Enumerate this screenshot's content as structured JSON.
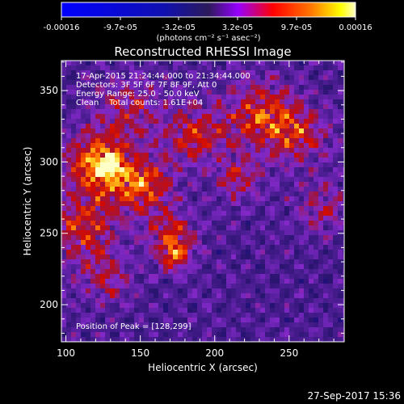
{
  "colorbar": {
    "tick_labels": [
      "-0.00016",
      "-9.7e-05",
      "-3.2e-05",
      "3.2e-05",
      "9.7e-05",
      "0.00016"
    ],
    "unit_label": "(photons cm⁻² s⁻¹ asec⁻²)",
    "range": [
      -0.00016,
      0.00016
    ]
  },
  "chart_data": {
    "type": "heatmap",
    "title": "Reconstructed RHESSI Image",
    "xlabel": "Heliocentric X (arcsec)",
    "ylabel": "Heliocentric Y (arcsec)",
    "xlim": [
      97,
      287
    ],
    "ylim": [
      174,
      371
    ],
    "x_ticks": [
      100,
      150,
      200,
      250
    ],
    "y_ticks": [
      200,
      250,
      300,
      350
    ],
    "annotations": [
      "17-Apr-2015 21:24:44.000 to 21:34:44.000",
      "Detectors: 3F 5F 6F 7F 8F 9F, Att 0",
      "Energy Range: 25.0 - 50.0 keV",
      "Clean    Total counts: 1.61E+04"
    ],
    "peak_label": "Position of Peak = [128,299]",
    "peak": [
      128,
      299
    ],
    "colors": {
      "low": "#0000ff",
      "mid": "#9600ff",
      "high": "#ff7800",
      "max": "#ffffb4"
    }
  },
  "timestamp": "27-Sep-2017 15:36"
}
